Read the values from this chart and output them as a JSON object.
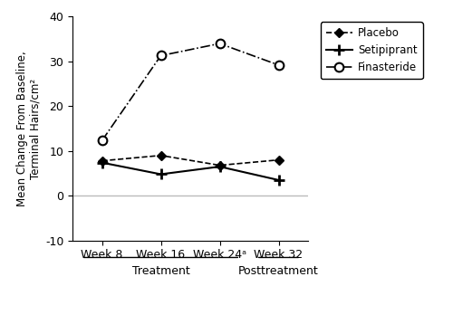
{
  "x_positions": [
    0,
    1,
    2,
    3
  ],
  "x_labels": [
    "Week 8",
    "Week 16",
    "Week 24ᵃ",
    "Week 32"
  ],
  "placebo_values": [
    7.8,
    9.0,
    6.8,
    8.0
  ],
  "setipiprant_values": [
    7.4,
    4.8,
    6.5,
    3.5
  ],
  "finasteride_values": [
    12.3,
    31.3,
    34.0,
    29.2
  ],
  "ylim": [
    -10,
    40
  ],
  "yticks": [
    -10,
    0,
    10,
    20,
    30,
    40
  ],
  "ylabel": "Mean Change From Baseline,\nTerminal Hairs/cm²",
  "legend_labels": [
    "Placebo",
    "Setipiprant",
    "Finasteride"
  ],
  "line_color": "#000000",
  "zero_line_color": "#bbbbbb",
  "treatment_label": "Treatment",
  "posttreatment_label": "Posttreatment",
  "background_color": "#ffffff",
  "figsize": [
    5.0,
    3.69
  ],
  "dpi": 100
}
